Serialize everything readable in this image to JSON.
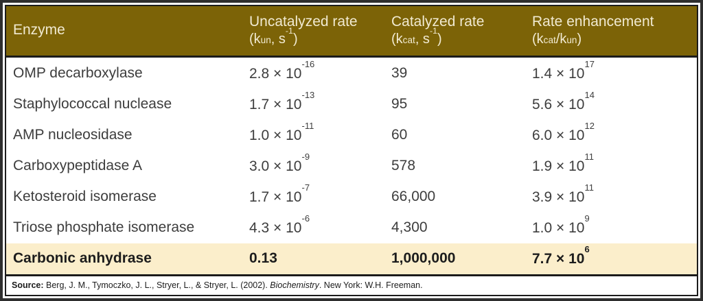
{
  "chart_data": {
    "type": "table",
    "columns": [
      {
        "label": "Enzyme",
        "unit": ""
      },
      {
        "label": "Uncatalyzed rate",
        "unit": "(k_{un}, s^{-1})"
      },
      {
        "label": "Catalyzed rate",
        "unit": "(k_{cat}, s^{-1})"
      },
      {
        "label": "Rate enhancement",
        "unit": "(k_{cat}/k_{un})"
      }
    ],
    "rows": [
      {
        "cells": [
          "OMP decarboxylase",
          "2.8 × 10^{-16}",
          "39",
          "1.4 × 10^{17}"
        ],
        "highlight": false
      },
      {
        "cells": [
          "Staphylococcal nuclease",
          "1.7 × 10^{-13}",
          "95",
          "5.6 × 10^{14}"
        ],
        "highlight": false
      },
      {
        "cells": [
          "AMP nucleosidase",
          "1.0 × 10^{-11}",
          "60",
          "6.0 × 10^{12}"
        ],
        "highlight": false
      },
      {
        "cells": [
          "Carboxypeptidase A",
          "3.0 × 10^{-9}",
          "578",
          "1.9 × 10^{11}"
        ],
        "highlight": false
      },
      {
        "cells": [
          "Ketosteroid isomerase",
          "1.7 × 10^{-7}",
          "66,000",
          "3.9 × 10^{11}"
        ],
        "highlight": false
      },
      {
        "cells": [
          "Triose phosphate isomerase",
          "4.3 × 10^{-6}",
          "4,300",
          "1.0 × 10^{9}"
        ],
        "highlight": false
      },
      {
        "cells": [
          "Carbonic anhydrase",
          "0.13",
          "1,000,000",
          "7.7 × 10^{6}"
        ],
        "highlight": true
      }
    ]
  },
  "footer": {
    "source_label": "Source:",
    "text_before_italic": " Berg, J. M., Tymoczko, J. L., Stryer, L., & Stryer, L. (2002). ",
    "italic_text": "Biochemistry",
    "text_after_italic": ". New York: W.H. Freeman."
  },
  "colors": {
    "header_bg": "#7c6307",
    "header_text": "#f1ead1",
    "highlight_bg": "#fbeecb",
    "body_text": "#3d3d3d",
    "inner_border": "#1b1b1b",
    "outer_border": "#2e2e2e"
  }
}
